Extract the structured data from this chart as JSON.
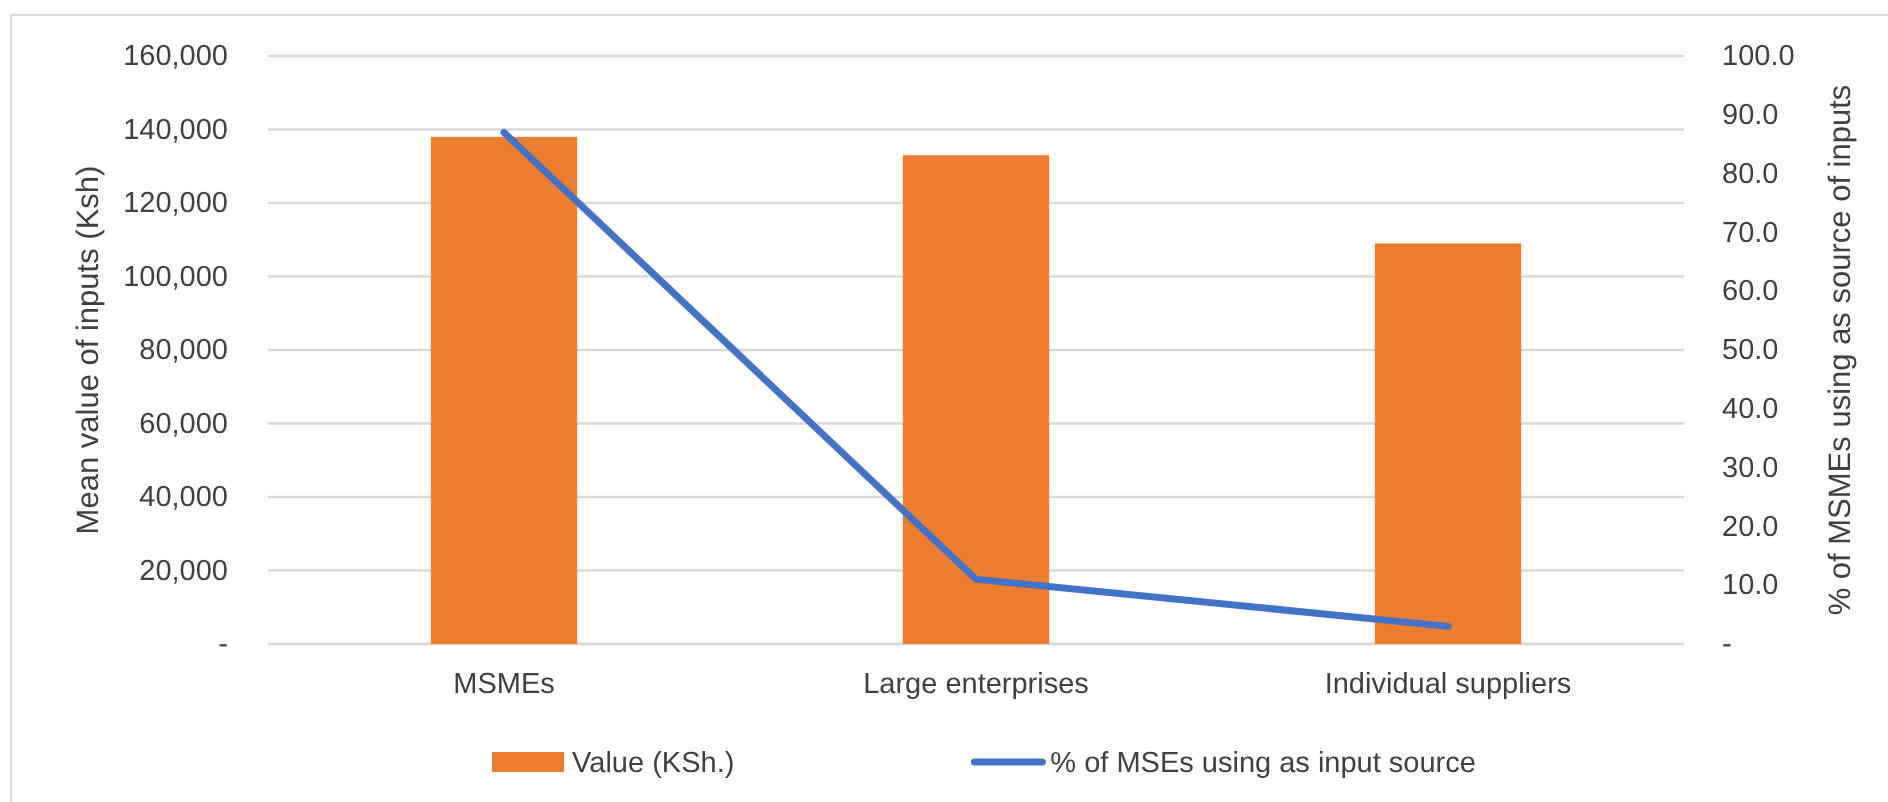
{
  "chart_data": {
    "type": "bar",
    "categories": [
      "MSMEs",
      "Large enterprises",
      "Individual suppliers"
    ],
    "series": [
      {
        "name": "Value (KSh.)",
        "color": "#ed7d31",
        "values": [
          138000,
          133000,
          109000
        ]
      },
      {
        "name": "% of MSEs using as input source",
        "type": "line",
        "axis": "y2",
        "color": "#4472c4",
        "values": [
          87,
          11,
          3
        ]
      }
    ],
    "ylabel": "Mean value of inputs (Ksh)",
    "y2label": "% of MSMEs using as source of inputs",
    "ylim": [
      0,
      160000
    ],
    "yticks": [
      {
        "value": 0,
        "label": "-"
      },
      {
        "value": 20000,
        "label": "20,000"
      },
      {
        "value": 40000,
        "label": "40,000"
      },
      {
        "value": 60000,
        "label": "60,000"
      },
      {
        "value": 80000,
        "label": "80,000"
      },
      {
        "value": 100000,
        "label": "100,000"
      },
      {
        "value": 120000,
        "label": "120,000"
      },
      {
        "value": 140000,
        "label": "140,000"
      },
      {
        "value": 160000,
        "label": "160,000"
      }
    ],
    "y2lim": [
      0,
      100
    ],
    "y2ticks": [
      {
        "value": 0,
        "label": "-"
      },
      {
        "value": 10,
        "label": "10.0"
      },
      {
        "value": 20,
        "label": "20.0"
      },
      {
        "value": 30,
        "label": "30.0"
      },
      {
        "value": 40,
        "label": "40.0"
      },
      {
        "value": 50,
        "label": "50.0"
      },
      {
        "value": 60,
        "label": "60.0"
      },
      {
        "value": 70,
        "label": "70.0"
      },
      {
        "value": 80,
        "label": "80.0"
      },
      {
        "value": 90,
        "label": "90.0"
      },
      {
        "value": 100,
        "label": "100.0"
      }
    ],
    "grid": "y",
    "legend": "bottom",
    "marker": "none",
    "line_style": "solid"
  }
}
